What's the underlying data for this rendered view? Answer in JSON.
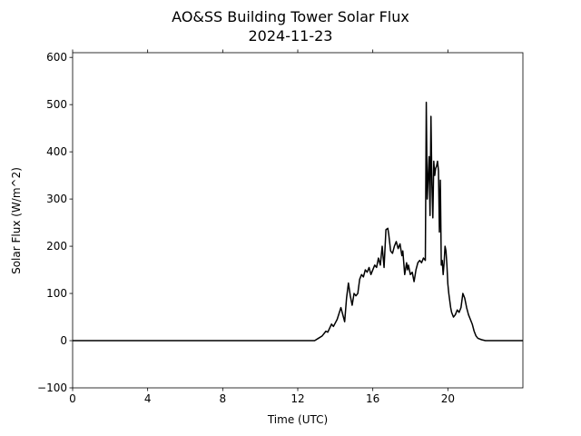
{
  "chart_data": {
    "type": "line",
    "title": "AO&SS Building Tower Solar Flux",
    "subtitle": "2024-11-23",
    "xlabel": "Time (UTC)",
    "ylabel": "Solar Flux (W/m^2)",
    "xlim": [
      0,
      24
    ],
    "ylim": [
      -100,
      610
    ],
    "xticks": [
      0,
      4,
      8,
      12,
      16,
      20
    ],
    "xtick_labels": [
      "0",
      "4",
      "8",
      "12",
      "16",
      "20"
    ],
    "yticks": [
      -100,
      0,
      100,
      200,
      300,
      400,
      500,
      600
    ],
    "ytick_labels": [
      "−100",
      "0",
      "100",
      "200",
      "300",
      "400",
      "500",
      "600"
    ],
    "grid": false,
    "line_color": "#000000",
    "series": [
      {
        "x": [
          0,
          12.9,
          13.1,
          13.3,
          13.5,
          13.6,
          13.8,
          13.9,
          14.1,
          14.3,
          14.5,
          14.6,
          14.7,
          14.8,
          14.9,
          15.0,
          15.1,
          15.2,
          15.3,
          15.4,
          15.5,
          15.6,
          15.7,
          15.8,
          15.9,
          16.0,
          16.1,
          16.2,
          16.3,
          16.4,
          16.5,
          16.6,
          16.7,
          16.8,
          16.85,
          16.95,
          17.05,
          17.15,
          17.25,
          17.35,
          17.45,
          17.55,
          17.6,
          17.7,
          17.8,
          17.85,
          17.9,
          18.0,
          18.1,
          18.2,
          18.3,
          18.4,
          18.5,
          18.6,
          18.7,
          18.8,
          18.85,
          18.9,
          19.0,
          19.05,
          19.1,
          19.15,
          19.2,
          19.25,
          19.3,
          19.35,
          19.4,
          19.45,
          19.5,
          19.55,
          19.6,
          19.65,
          19.7,
          19.75,
          19.8,
          19.85,
          19.9,
          19.95,
          20.0,
          20.05,
          20.1,
          20.15,
          20.2,
          20.3,
          20.4,
          20.5,
          20.6,
          20.7,
          20.8,
          20.9,
          21.0,
          21.1,
          21.2,
          21.3,
          21.4,
          21.5,
          21.6,
          21.8,
          22.0,
          22.2,
          22.4,
          22.5,
          22.7,
          24.0
        ],
        "y": [
          0,
          0,
          5,
          10,
          20,
          18,
          35,
          30,
          45,
          70,
          40,
          90,
          122,
          95,
          75,
          100,
          95,
          100,
          130,
          140,
          135,
          150,
          145,
          155,
          140,
          150,
          160,
          155,
          175,
          160,
          200,
          155,
          235,
          238,
          225,
          190,
          185,
          200,
          210,
          195,
          205,
          180,
          190,
          140,
          165,
          150,
          160,
          140,
          145,
          125,
          150,
          165,
          170,
          165,
          175,
          170,
          505,
          300,
          390,
          265,
          475,
          330,
          260,
          380,
          350,
          365,
          370,
          380,
          360,
          230,
          340,
          160,
          170,
          140,
          165,
          200,
          190,
          160,
          120,
          100,
          85,
          70,
          60,
          50,
          55,
          65,
          60,
          70,
          100,
          90,
          70,
          55,
          45,
          35,
          20,
          10,
          5,
          2,
          0,
          0,
          0,
          0,
          0,
          0
        ]
      }
    ]
  }
}
